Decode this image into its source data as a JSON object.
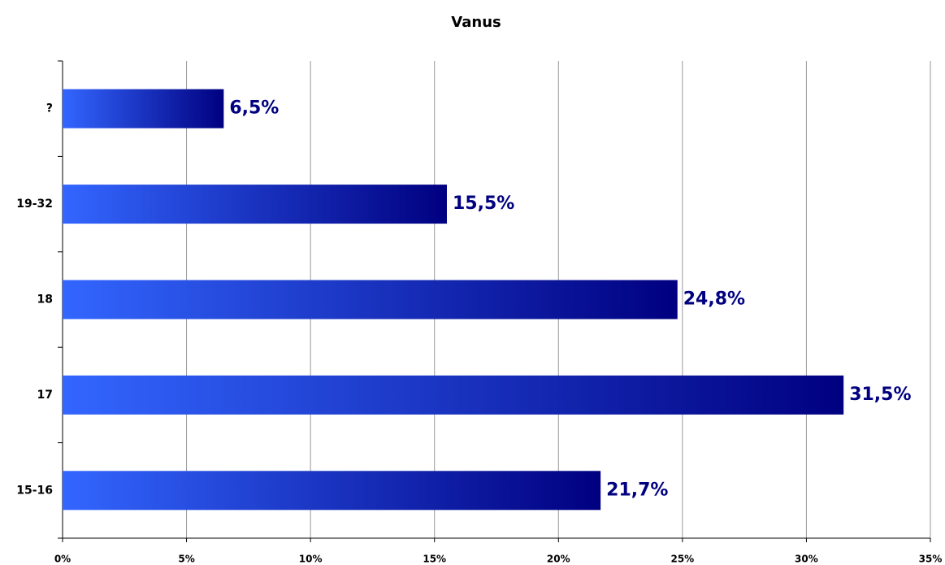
{
  "chart_data": {
    "type": "barh",
    "title": "Vanus",
    "categories": [
      "?",
      "19-32",
      "18",
      "17",
      "15-16"
    ],
    "values": [
      6.5,
      15.5,
      24.8,
      31.5,
      21.7
    ],
    "value_labels": [
      "6,5%",
      "15,5%",
      "24,8%",
      "31,5%",
      "21,7%"
    ],
    "color": [
      "#3366ff",
      "#000080"
    ],
    "xlim": [
      0,
      35
    ],
    "xticks": [
      {
        "value": 0,
        "label": "0%"
      },
      {
        "value": 5,
        "label": "5%"
      },
      {
        "value": 10,
        "label": "10%"
      },
      {
        "value": 15,
        "label": "15%"
      },
      {
        "value": 20,
        "label": "20%"
      },
      {
        "value": 25,
        "label": "25%"
      },
      {
        "value": 30,
        "label": "30%"
      },
      {
        "value": 35,
        "label": "35%"
      }
    ],
    "grid": true
  }
}
